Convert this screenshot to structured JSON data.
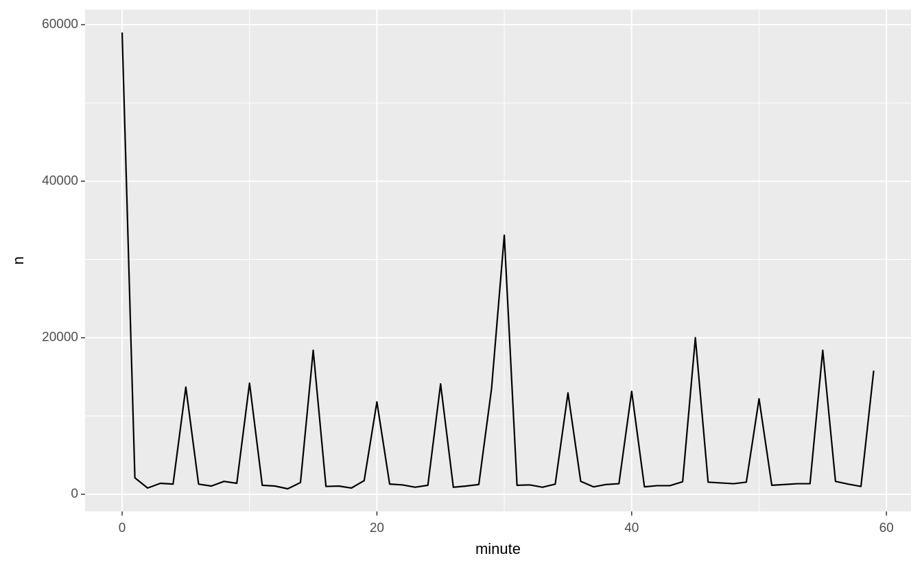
{
  "chart_data": {
    "type": "line",
    "x_label": "minute",
    "y_label": "n",
    "x": [
      0,
      1,
      2,
      3,
      4,
      5,
      6,
      7,
      8,
      9,
      10,
      11,
      12,
      13,
      14,
      15,
      16,
      17,
      18,
      19,
      20,
      21,
      22,
      23,
      24,
      25,
      26,
      27,
      28,
      29,
      30,
      31,
      32,
      33,
      34,
      35,
      36,
      37,
      38,
      39,
      40,
      41,
      42,
      43,
      44,
      45,
      46,
      47,
      48,
      49,
      50,
      51,
      52,
      53,
      54,
      55,
      56,
      57,
      58,
      59
    ],
    "series": [
      {
        "color": "#000000",
        "values": [
          59000,
          2100,
          800,
          1400,
          1300,
          13700,
          1300,
          1050,
          1650,
          1400,
          14200,
          1150,
          1050,
          700,
          1500,
          18400,
          1000,
          1050,
          800,
          1750,
          11800,
          1300,
          1200,
          900,
          1150,
          14100,
          900,
          1050,
          1250,
          13500,
          33100,
          1150,
          1200,
          900,
          1300,
          12950,
          1650,
          950,
          1250,
          1350,
          13150,
          950,
          1100,
          1100,
          1600,
          20000,
          1550,
          1450,
          1350,
          1550,
          12200,
          1150,
          1250,
          1350,
          1350,
          18400,
          1650,
          1300,
          1000,
          15800
        ]
      }
    ],
    "xlim": [
      -2.91,
      61.93
    ],
    "ylim": [
      -2190,
      61925
    ],
    "xticks": [
      0,
      20,
      40,
      60
    ],
    "yticks": [
      0,
      20000,
      40000,
      60000
    ],
    "grid": true
  }
}
